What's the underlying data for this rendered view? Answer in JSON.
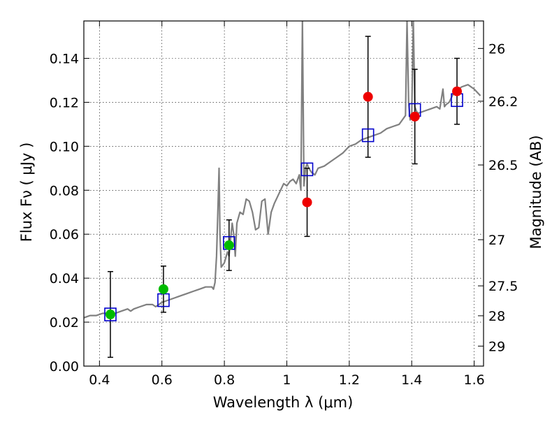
{
  "chart_data": {
    "type": "scatter",
    "title": "",
    "xlabel": "Wavelength  λ (μm)",
    "ylabel": "Flux  Fν  ( μJy )",
    "y2label": "Magnitude (AB)",
    "xlim": [
      0.35,
      1.63
    ],
    "ylim": [
      0.0,
      0.157
    ],
    "grid": true,
    "x_ticks": [
      0.4,
      0.6,
      0.8,
      1.0,
      1.2,
      1.4,
      1.6
    ],
    "x_tick_labels": [
      "0.4",
      "0.6",
      "0.8",
      "1",
      "1.2",
      "1.4",
      "1.6"
    ],
    "y_ticks": [
      0.0,
      0.02,
      0.04,
      0.06,
      0.08,
      0.1,
      0.12,
      0.14
    ],
    "y_tick_labels": [
      "0.00",
      "0.02",
      "0.04",
      "0.06",
      "0.08",
      "0.10",
      "0.12",
      "0.14"
    ],
    "y2_ticks": [
      {
        "label": "26",
        "flux": 0.1445
      },
      {
        "label": "26.2",
        "flux": 0.1205
      },
      {
        "label": "26.5",
        "flux": 0.0915
      },
      {
        "label": "27",
        "flux": 0.0575
      },
      {
        "label": "27.5",
        "flux": 0.0365
      },
      {
        "label": "28",
        "flux": 0.0229
      },
      {
        "label": "29",
        "flux": 0.0091
      }
    ],
    "series": [
      {
        "marker": "line",
        "color": "#808080",
        "x": [
          0.35,
          0.37,
          0.39,
          0.41,
          0.43,
          0.45,
          0.47,
          0.49,
          0.5,
          0.51,
          0.53,
          0.55,
          0.57,
          0.58,
          0.6,
          0.62,
          0.64,
          0.66,
          0.68,
          0.7,
          0.72,
          0.74,
          0.76,
          0.765,
          0.77,
          0.775,
          0.78,
          0.783,
          0.786,
          0.79,
          0.8,
          0.81,
          0.815,
          0.82,
          0.825,
          0.83,
          0.835,
          0.84,
          0.85,
          0.86,
          0.87,
          0.88,
          0.89,
          0.9,
          0.91,
          0.92,
          0.93,
          0.94,
          0.95,
          0.96,
          0.97,
          0.98,
          0.99,
          1.0,
          1.01,
          1.02,
          1.03,
          1.04,
          1.045,
          1.05,
          1.055,
          1.06,
          1.065,
          1.07,
          1.08,
          1.09,
          1.1,
          1.12,
          1.14,
          1.16,
          1.18,
          1.2,
          1.22,
          1.24,
          1.26,
          1.28,
          1.3,
          1.32,
          1.34,
          1.36,
          1.37,
          1.38,
          1.385,
          1.39,
          1.395,
          1.4,
          1.405,
          1.41,
          1.415,
          1.42,
          1.44,
          1.46,
          1.48,
          1.49,
          1.5,
          1.505,
          1.51,
          1.52,
          1.53,
          1.54,
          1.56,
          1.58,
          1.6,
          1.62
        ],
        "y": [
          0.022,
          0.023,
          0.023,
          0.024,
          0.024,
          0.024,
          0.025,
          0.026,
          0.025,
          0.026,
          0.027,
          0.028,
          0.028,
          0.027,
          0.029,
          0.03,
          0.031,
          0.032,
          0.033,
          0.034,
          0.035,
          0.036,
          0.036,
          0.035,
          0.038,
          0.05,
          0.075,
          0.09,
          0.06,
          0.045,
          0.047,
          0.052,
          0.05,
          0.058,
          0.065,
          0.06,
          0.05,
          0.065,
          0.07,
          0.069,
          0.076,
          0.075,
          0.07,
          0.062,
          0.063,
          0.075,
          0.076,
          0.06,
          0.07,
          0.074,
          0.077,
          0.08,
          0.083,
          0.082,
          0.084,
          0.085,
          0.083,
          0.087,
          0.08,
          0.157,
          0.082,
          0.09,
          0.092,
          0.09,
          0.088,
          0.087,
          0.09,
          0.091,
          0.093,
          0.095,
          0.097,
          0.1,
          0.101,
          0.103,
          0.104,
          0.105,
          0.106,
          0.108,
          0.109,
          0.11,
          0.112,
          0.114,
          0.157,
          0.12,
          0.112,
          0.114,
          0.157,
          0.118,
          0.116,
          0.115,
          0.116,
          0.117,
          0.118,
          0.117,
          0.126,
          0.118,
          0.119,
          0.12,
          0.123,
          0.125,
          0.127,
          0.128,
          0.126,
          0.123
        ]
      },
      {
        "marker": "circle",
        "color": "#00bb00",
        "x": [
          0.435,
          0.605,
          0.815
        ],
        "y": [
          0.0235,
          0.035,
          0.055
        ],
        "err": [
          0.0195,
          0.0105,
          0.0115
        ]
      },
      {
        "marker": "circle",
        "color": "#ee0000",
        "x": [
          1.065,
          1.26,
          1.41,
          1.545
        ],
        "y": [
          0.0745,
          0.1225,
          0.1135,
          0.125
        ],
        "err": [
          0.0155,
          0.0275,
          0.0215,
          0.015
        ]
      },
      {
        "marker": "square",
        "color": "#0000cc",
        "x": [
          0.435,
          0.605,
          0.815,
          1.065,
          1.26,
          1.41,
          1.545
        ],
        "y": [
          0.0235,
          0.03,
          0.056,
          0.0895,
          0.105,
          0.1165,
          0.121
        ]
      }
    ]
  }
}
